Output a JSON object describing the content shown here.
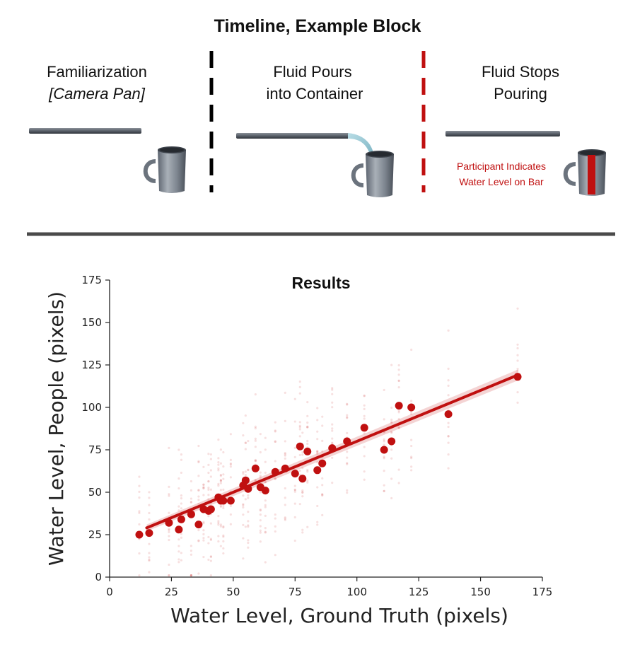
{
  "timeline": {
    "title": "Timeline, Example Block",
    "phases": [
      {
        "line1": "Familiarization",
        "line2": "[Camera Pan]"
      },
      {
        "line1": "Fluid Pours",
        "line2": "into Container"
      },
      {
        "line1": "Fluid Stops",
        "line2": "Pouring"
      }
    ],
    "annotation": {
      "line1": "Participant Indicates",
      "line2": "Water Level on Bar"
    },
    "colors": {
      "divider_1": "#000000",
      "divider_2": "#c01010",
      "accent": "#c01010"
    }
  },
  "chart_data": {
    "type": "scatter",
    "title": "Results",
    "xlabel": "Water Level, Ground Truth (pixels)",
    "ylabel": "Water Level, People (pixels)",
    "xlim": [
      0,
      175
    ],
    "ylim": [
      0,
      175
    ],
    "xticks": [
      0,
      25,
      50,
      75,
      100,
      125,
      150,
      175
    ],
    "yticks": [
      0,
      25,
      50,
      75,
      100,
      125,
      150,
      175
    ],
    "grid": false,
    "color": "#c01010",
    "series": [
      {
        "points": [
          [
            12,
            25
          ],
          [
            16,
            26
          ],
          [
            24,
            32
          ],
          [
            28,
            28
          ],
          [
            29,
            34
          ],
          [
            33,
            37
          ],
          [
            36,
            31
          ],
          [
            38,
            40
          ],
          [
            40,
            39
          ],
          [
            41,
            40
          ],
          [
            44,
            47
          ],
          [
            45,
            45
          ],
          [
            46,
            45
          ],
          [
            49,
            45
          ],
          [
            54,
            54
          ],
          [
            55,
            57
          ],
          [
            56,
            52
          ],
          [
            59,
            64
          ],
          [
            61,
            53
          ],
          [
            63,
            51
          ],
          [
            67,
            62
          ],
          [
            71,
            64
          ],
          [
            75,
            61
          ],
          [
            77,
            77
          ],
          [
            78,
            58
          ],
          [
            80,
            74
          ],
          [
            84,
            63
          ],
          [
            86,
            67
          ],
          [
            90,
            76
          ],
          [
            96,
            80
          ],
          [
            103,
            88
          ],
          [
            111,
            75
          ],
          [
            114,
            80
          ],
          [
            117,
            101
          ],
          [
            122,
            100
          ],
          [
            137,
            96
          ],
          [
            165,
            118
          ]
        ]
      }
    ],
    "trend_line": {
      "x": [
        15,
        165
      ],
      "y": [
        29,
        119
      ]
    }
  }
}
